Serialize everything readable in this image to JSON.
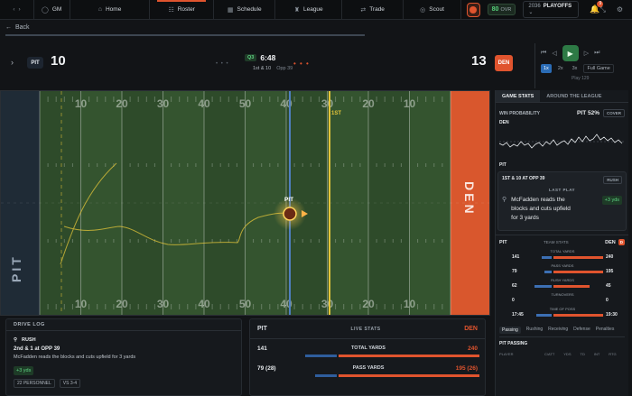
{
  "topbar": {
    "gm_label": "GM",
    "nav": [
      {
        "label": "Home"
      },
      {
        "label": "Roster"
      },
      {
        "label": "Schedule"
      },
      {
        "label": "League"
      },
      {
        "label": "Trade"
      },
      {
        "label": "Scout"
      }
    ],
    "ovr_value": "80",
    "ovr_label": "OVR",
    "season_year": "2036",
    "season_phase": "PLAYOFFS",
    "notif_count": "9"
  },
  "back_label": "Back",
  "scoreboard": {
    "home_abbr": "PIT",
    "home_score": "10",
    "away_abbr": "DEN",
    "away_score": "13",
    "quarter": "Q3",
    "clock": "6:48",
    "down_distance": "1st & 10",
    "spot": "Opp 39",
    "speeds": [
      "1x",
      "2x",
      "3x"
    ],
    "full_game_label": "Full Game",
    "play_number": "Play 129"
  },
  "field": {
    "left_endzone": "PIT",
    "right_endzone": "DEN",
    "yard_numbers": [
      "10",
      "20",
      "30",
      "40",
      "50",
      "40",
      "30",
      "20",
      "10"
    ],
    "ball_carrier_label": "PIT",
    "marker_label": "1ST",
    "colors": {
      "turf": "#2e4b2a",
      "home": "#1f2b36",
      "away": "#d9572d",
      "first_down": "#e4c53a",
      "los": "#4f7fc0"
    }
  },
  "panel": {
    "tabs": [
      "GAME STATS",
      "AROUND THE LEAGUE"
    ],
    "win_prob_label": "WIN PROBABILITY",
    "win_prob_value": "PIT 52%",
    "cover_label": "COVER",
    "wp_top": "DEN",
    "wp_bottom": "PIT",
    "last_play": {
      "situation": "1ST & 10 AT OPP 39",
      "tag": "RUSH",
      "label": "LAST PLAY",
      "text": "McFadden reads the blocks and cuts upfield for 3 yards",
      "yards": "+3 yds"
    },
    "team_stats": {
      "home": "PIT",
      "label": "TEAM STATS",
      "away": "DEN",
      "rows": [
        {
          "label": "TOTAL YARDS",
          "home": "141",
          "away": "240"
        },
        {
          "label": "PASS YARDS",
          "home": "79",
          "away": "195"
        },
        {
          "label": "RUSH YARDS",
          "home": "62",
          "away": "45"
        },
        {
          "label": "TURNOVERS",
          "home": "0",
          "away": "0"
        },
        {
          "label": "TIME OF POSS",
          "home": "17:45",
          "away": "19:30"
        }
      ]
    },
    "stat_tabs": [
      "Passing",
      "Rushing",
      "Receiving",
      "Defense",
      "Penalties"
    ],
    "passing_title": "PIT PASSING",
    "passing_cols": [
      "PLAYER",
      "C/ATT",
      "YDS",
      "TD",
      "INT",
      "RTG"
    ]
  },
  "drive_log": {
    "title": "DRIVE LOG",
    "play_type": "RUSH",
    "down_distance": "2nd & 1 at OPP 39",
    "description": "McFadden reads the blocks and cuts upfield for 3 yards",
    "yards": "+3 yds",
    "tags": [
      "22 PERSONNEL",
      "VS 3-4"
    ]
  },
  "live_stats": {
    "home": "PIT",
    "title": "LIVE STATS",
    "away": "DEN",
    "rows": [
      {
        "label": "TOTAL YARDS",
        "home": "141",
        "away": "240"
      },
      {
        "label": "PASS YARDS",
        "home": "79 (28)",
        "away": "195 (26)"
      }
    ]
  }
}
